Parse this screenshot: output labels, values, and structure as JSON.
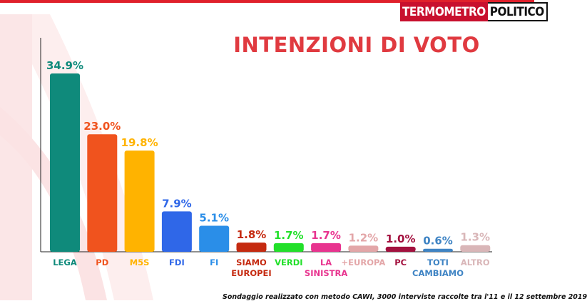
{
  "brand": {
    "part1": "TERMOMETRO",
    "part2": "POLITICO"
  },
  "chart_data": {
    "type": "bar",
    "title": "INTENZIONI DI VOTO",
    "categories": [
      "LEGA",
      "PD",
      "M5S",
      "FDI",
      "FI",
      "SIAMO\nEUROPEI",
      "VERDI",
      "LA\nSINISTRA",
      "+EUROPA",
      "PC",
      "TOTI\nCAMBIAMO",
      "ALTRO"
    ],
    "values": [
      34.9,
      23.0,
      19.8,
      7.9,
      5.1,
      1.8,
      1.7,
      1.7,
      1.2,
      1.0,
      0.6,
      1.3
    ],
    "value_labels": [
      "34.9%",
      "23.0%",
      "19.8%",
      "7.9%",
      "5.1%",
      "1.8%",
      "1.7%",
      "1.7%",
      "1.2%",
      "1.0%",
      "0.6%",
      "1.3%"
    ],
    "colors": [
      "#0f8a7b",
      "#f0531e",
      "#ffb300",
      "#2f67e8",
      "#2a8ee8",
      "#c52a10",
      "#22e02a",
      "#e8348f",
      "#e3a6a8",
      "#a3103e",
      "#3f84c4",
      "#d9b6b8"
    ],
    "xlabel": "",
    "ylabel": ""
  },
  "footnote": "Sondaggio realizzato con metodo CAWI, 3000 interviste raccolte tra l'11 e il 12 settembre 2019"
}
